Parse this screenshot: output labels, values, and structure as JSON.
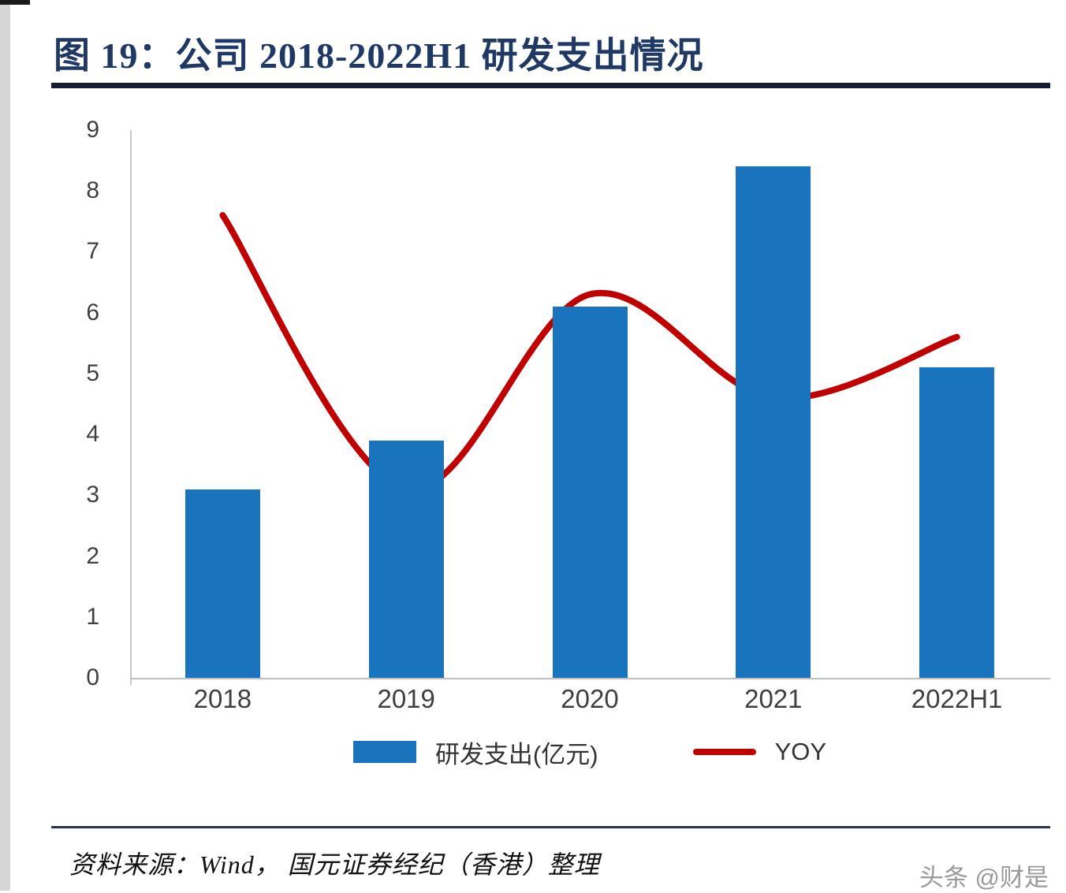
{
  "page": {
    "title": "图 19：公司 2018-2022H1 研发支出情况",
    "source": "资料来源：Wind， 国元证券经纪（香港）整理",
    "watermark": "头条 @财是"
  },
  "chart_data": {
    "type": "bar+line",
    "title": "公司 2018-2022H1 研发支出情况",
    "categories": [
      "2018",
      "2019",
      "2020",
      "2021",
      "2022H1"
    ],
    "series": [
      {
        "name": "研发支出(亿元)",
        "type": "bar",
        "color": "#1a73bd",
        "values": [
          3.1,
          3.9,
          6.1,
          8.4,
          5.1
        ]
      },
      {
        "name": "YOY",
        "type": "line",
        "color": "#c00000",
        "values": [
          7.6,
          3.1,
          6.3,
          4.6,
          5.6
        ]
      }
    ],
    "xlabel": "",
    "ylabel": "",
    "ylim": [
      0,
      9
    ],
    "yticks": [
      0,
      1,
      2,
      3,
      4,
      5,
      6,
      7,
      8,
      9
    ],
    "grid": false,
    "legend_position": "bottom"
  }
}
